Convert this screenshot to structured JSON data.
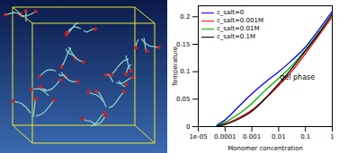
{
  "chart_data": {
    "type": "line",
    "x_label": "Monomer concentration",
    "y_label": "Temperature",
    "log": "x",
    "grid": false,
    "legend": "top-left",
    "xlim": [
      1e-05,
      1
    ],
    "xticks": [
      {
        "value": 1e-05,
        "label": "1e-05"
      },
      0.0001,
      0.001,
      0.01,
      0.1,
      1
    ],
    "ylim": [
      0,
      0.22
    ],
    "yticks": [
      0,
      0.05,
      0.1,
      0.15,
      0.2
    ],
    "x": [
      5e-05,
      0.0001,
      0.0003,
      0.001,
      0.003,
      0.01,
      0.03,
      0.1,
      0.3,
      1
    ],
    "series": [
      {
        "name": "c_salt=0",
        "color": "#0000ff",
        "values": [
          0.003,
          0.012,
          0.035,
          0.06,
          0.08,
          0.1,
          0.12,
          0.145,
          0.175,
          0.21
        ]
      },
      {
        "name": "c_salt=0.001M",
        "color": "#ff0000",
        "values": [
          0.001,
          0.005,
          0.015,
          0.03,
          0.05,
          0.075,
          0.1,
          0.133,
          0.165,
          0.2
        ]
      },
      {
        "name": "c_salt=0.01M",
        "color": "#00b000",
        "values": [
          0.002,
          0.008,
          0.022,
          0.042,
          0.065,
          0.088,
          0.11,
          0.14,
          0.17,
          0.205
        ]
      },
      {
        "name": "c_salt=0.1M",
        "color": "#000000",
        "values": [
          0.001,
          0.004,
          0.013,
          0.028,
          0.05,
          0.078,
          0.105,
          0.138,
          0.168,
          0.205
        ]
      }
    ],
    "annotations": [
      {
        "text": "gel phase",
        "x": 0.05,
        "y": 0.09
      }
    ]
  }
}
